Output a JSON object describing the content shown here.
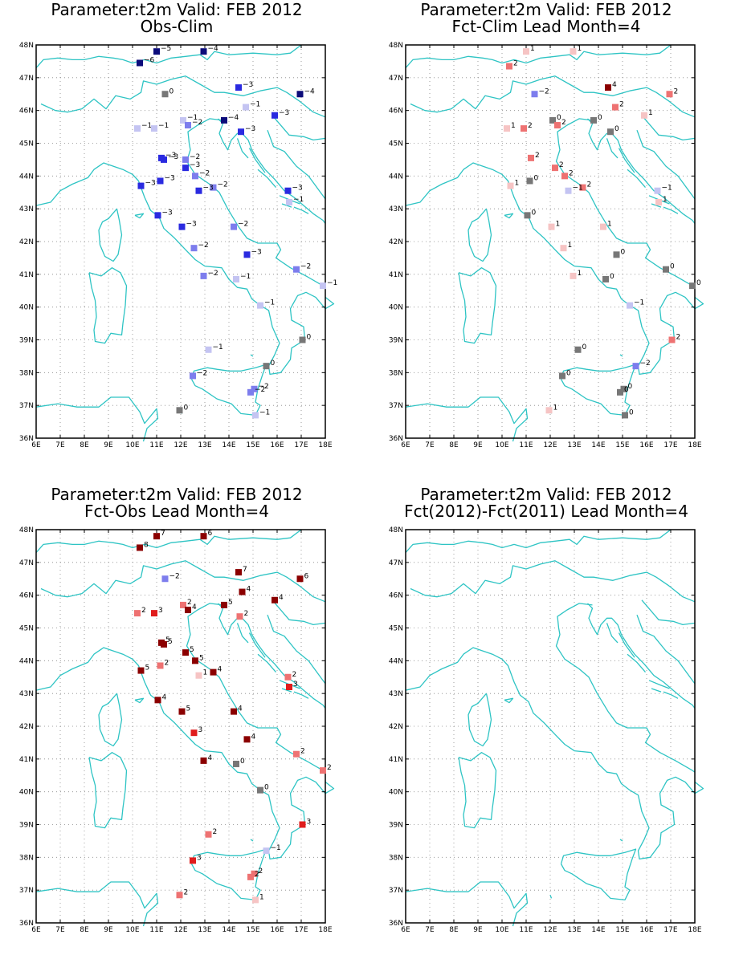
{
  "lon_ticks": [
    "6E",
    "7E",
    "8E",
    "9E",
    "10E",
    "11E",
    "12E",
    "13E",
    "14E",
    "15E",
    "16E",
    "17E",
    "18E"
  ],
  "lat_ticks": [
    "36N",
    "37N",
    "38N",
    "39N",
    "40N",
    "41N",
    "42N",
    "43N",
    "44N",
    "45N",
    "46N",
    "47N",
    "48N"
  ],
  "extent": {
    "lon": [
      6,
      18
    ],
    "lat": [
      36,
      48
    ]
  },
  "colors": {
    "coast": "#2ec4c4",
    "grid": "#888888",
    "neg_strong": "#0b0b7a",
    "neutral": "#777777",
    "pos_strong": "#8b0000"
  },
  "panels": [
    {
      "title": "Parameter:t2m Valid: FEB 2012",
      "subtitle": "Obs-Clim",
      "stations": [
        {
          "lon": 11.0,
          "lat": 47.8,
          "v": -5
        },
        {
          "lon": 12.95,
          "lat": 47.8,
          "v": -4
        },
        {
          "lon": 10.3,
          "lat": 47.45,
          "v": -6
        },
        {
          "lon": 11.35,
          "lat": 46.5,
          "v": 0
        },
        {
          "lon": 14.4,
          "lat": 46.7,
          "v": -3
        },
        {
          "lon": 16.95,
          "lat": 46.5,
          "v": -4
        },
        {
          "lon": 14.7,
          "lat": 46.1,
          "v": -1
        },
        {
          "lon": 13.8,
          "lat": 45.7,
          "v": -4
        },
        {
          "lon": 15.9,
          "lat": 45.85,
          "v": -3
        },
        {
          "lon": 12.1,
          "lat": 45.7,
          "v": -1
        },
        {
          "lon": 12.3,
          "lat": 45.55,
          "v": -2
        },
        {
          "lon": 14.5,
          "lat": 45.35,
          "v": -3
        },
        {
          "lon": 10.2,
          "lat": 45.45,
          "v": -1
        },
        {
          "lon": 10.9,
          "lat": 45.45,
          "v": -1
        },
        {
          "lon": 11.2,
          "lat": 44.55,
          "v": -3
        },
        {
          "lon": 11.3,
          "lat": 44.5,
          "v": -3
        },
        {
          "lon": 12.2,
          "lat": 44.5,
          "v": -2
        },
        {
          "lon": 12.2,
          "lat": 44.25,
          "v": -3
        },
        {
          "lon": 12.6,
          "lat": 44.0,
          "v": -2
        },
        {
          "lon": 13.35,
          "lat": 43.65,
          "v": -2
        },
        {
          "lon": 12.75,
          "lat": 43.55,
          "v": -3
        },
        {
          "lon": 10.35,
          "lat": 43.7,
          "v": -3
        },
        {
          "lon": 11.15,
          "lat": 43.85,
          "v": -3
        },
        {
          "lon": 16.45,
          "lat": 43.55,
          "v": -3
        },
        {
          "lon": 16.5,
          "lat": 43.2,
          "v": -1
        },
        {
          "lon": 11.05,
          "lat": 42.8,
          "v": -3
        },
        {
          "lon": 12.05,
          "lat": 42.45,
          "v": -3
        },
        {
          "lon": 14.2,
          "lat": 42.45,
          "v": -2
        },
        {
          "lon": 12.55,
          "lat": 41.8,
          "v": -2
        },
        {
          "lon": 14.75,
          "lat": 41.6,
          "v": -3
        },
        {
          "lon": 16.8,
          "lat": 41.15,
          "v": -2
        },
        {
          "lon": 12.95,
          "lat": 40.95,
          "v": -2
        },
        {
          "lon": 14.3,
          "lat": 40.85,
          "v": -1
        },
        {
          "lon": 17.9,
          "lat": 40.65,
          "v": -1
        },
        {
          "lon": 15.3,
          "lat": 40.05,
          "v": -1
        },
        {
          "lon": 17.05,
          "lat": 39.0,
          "v": 0
        },
        {
          "lon": 13.15,
          "lat": 38.7,
          "v": -1
        },
        {
          "lon": 15.55,
          "lat": 38.2,
          "v": 0
        },
        {
          "lon": 12.5,
          "lat": 37.9,
          "v": -2
        },
        {
          "lon": 15.05,
          "lat": 37.5,
          "v": -2
        },
        {
          "lon": 14.9,
          "lat": 37.4,
          "v": -2
        },
        {
          "lon": 11.95,
          "lat": 36.85,
          "v": 0
        },
        {
          "lon": 15.1,
          "lat": 36.7,
          "v": -1
        }
      ]
    },
    {
      "title": "Parameter:t2m Valid: FEB 2012",
      "subtitle": "Fct-Clim Lead Month=4",
      "stations": [
        {
          "lon": 11.0,
          "lat": 47.8,
          "v": 1
        },
        {
          "lon": 12.95,
          "lat": 47.8,
          "v": 1
        },
        {
          "lon": 10.3,
          "lat": 47.35,
          "v": 2
        },
        {
          "lon": 11.35,
          "lat": 46.5,
          "v": -2
        },
        {
          "lon": 14.4,
          "lat": 46.7,
          "v": 4
        },
        {
          "lon": 16.95,
          "lat": 46.5,
          "v": 2
        },
        {
          "lon": 14.7,
          "lat": 46.1,
          "v": 2
        },
        {
          "lon": 13.8,
          "lat": 45.7,
          "v": 0
        },
        {
          "lon": 15.9,
          "lat": 45.85,
          "v": 1
        },
        {
          "lon": 12.1,
          "lat": 45.7,
          "v": 0
        },
        {
          "lon": 12.3,
          "lat": 45.55,
          "v": 2
        },
        {
          "lon": 14.5,
          "lat": 45.35,
          "v": 0
        },
        {
          "lon": 10.2,
          "lat": 45.45,
          "v": 1
        },
        {
          "lon": 10.9,
          "lat": 45.45,
          "v": 2
        },
        {
          "lon": 11.2,
          "lat": 44.55,
          "v": 2
        },
        {
          "lon": 12.2,
          "lat": 44.25,
          "v": 2
        },
        {
          "lon": 12.6,
          "lat": 44.0,
          "v": 2
        },
        {
          "lon": 13.35,
          "lat": 43.65,
          "v": 2
        },
        {
          "lon": 12.75,
          "lat": 43.55,
          "v": -1
        },
        {
          "lon": 10.35,
          "lat": 43.7,
          "v": 1
        },
        {
          "lon": 11.15,
          "lat": 43.85,
          "v": 0
        },
        {
          "lon": 16.45,
          "lat": 43.55,
          "v": -1
        },
        {
          "lon": 16.5,
          "lat": 43.2,
          "v": 1
        },
        {
          "lon": 11.05,
          "lat": 42.8,
          "v": 0
        },
        {
          "lon": 12.05,
          "lat": 42.45,
          "v": 1
        },
        {
          "lon": 14.2,
          "lat": 42.45,
          "v": 1
        },
        {
          "lon": 12.55,
          "lat": 41.8,
          "v": 1
        },
        {
          "lon": 14.75,
          "lat": 41.6,
          "v": 0
        },
        {
          "lon": 16.8,
          "lat": 41.15,
          "v": 0
        },
        {
          "lon": 12.95,
          "lat": 40.95,
          "v": 1
        },
        {
          "lon": 14.3,
          "lat": 40.85,
          "v": 0
        },
        {
          "lon": 17.9,
          "lat": 40.65,
          "v": 0
        },
        {
          "lon": 15.3,
          "lat": 40.05,
          "v": -1
        },
        {
          "lon": 17.05,
          "lat": 39.0,
          "v": 2
        },
        {
          "lon": 13.15,
          "lat": 38.7,
          "v": 0
        },
        {
          "lon": 15.55,
          "lat": 38.2,
          "v": -2
        },
        {
          "lon": 12.5,
          "lat": 37.9,
          "v": 0
        },
        {
          "lon": 15.05,
          "lat": 37.5,
          "v": 0
        },
        {
          "lon": 14.9,
          "lat": 37.4,
          "v": 0
        },
        {
          "lon": 11.95,
          "lat": 36.85,
          "v": 1
        },
        {
          "lon": 15.1,
          "lat": 36.7,
          "v": 0
        }
      ]
    },
    {
      "title": "Parameter:t2m Valid: FEB 2012",
      "subtitle": "Fct-Obs Lead Month=4",
      "stations": [
        {
          "lon": 11.0,
          "lat": 47.8,
          "v": 7
        },
        {
          "lon": 12.95,
          "lat": 47.8,
          "v": 6
        },
        {
          "lon": 10.3,
          "lat": 47.45,
          "v": 8
        },
        {
          "lon": 11.35,
          "lat": 46.5,
          "v": -2
        },
        {
          "lon": 14.4,
          "lat": 46.7,
          "v": 7
        },
        {
          "lon": 16.95,
          "lat": 46.5,
          "v": 6
        },
        {
          "lon": 14.55,
          "lat": 46.1,
          "v": 4
        },
        {
          "lon": 13.8,
          "lat": 45.7,
          "v": 5
        },
        {
          "lon": 15.9,
          "lat": 45.85,
          "v": 4
        },
        {
          "lon": 12.1,
          "lat": 45.7,
          "v": 2
        },
        {
          "lon": 12.3,
          "lat": 45.55,
          "v": 4
        },
        {
          "lon": 14.45,
          "lat": 45.35,
          "v": 2
        },
        {
          "lon": 10.2,
          "lat": 45.45,
          "v": 2
        },
        {
          "lon": 10.9,
          "lat": 45.45,
          "v": 3
        },
        {
          "lon": 11.2,
          "lat": 44.55,
          "v": 5
        },
        {
          "lon": 11.3,
          "lat": 44.5,
          "v": 5
        },
        {
          "lon": 12.2,
          "lat": 44.25,
          "v": 5
        },
        {
          "lon": 12.6,
          "lat": 44.0,
          "v": 5
        },
        {
          "lon": 13.35,
          "lat": 43.65,
          "v": 4
        },
        {
          "lon": 12.75,
          "lat": 43.55,
          "v": 1
        },
        {
          "lon": 10.35,
          "lat": 43.7,
          "v": 5
        },
        {
          "lon": 11.15,
          "lat": 43.85,
          "v": 2
        },
        {
          "lon": 16.45,
          "lat": 43.5,
          "v": 2
        },
        {
          "lon": 16.5,
          "lat": 43.2,
          "v": 3
        },
        {
          "lon": 11.05,
          "lat": 42.8,
          "v": 4
        },
        {
          "lon": 12.05,
          "lat": 42.45,
          "v": 5
        },
        {
          "lon": 14.2,
          "lat": 42.45,
          "v": 4
        },
        {
          "lon": 12.55,
          "lat": 41.8,
          "v": 3
        },
        {
          "lon": 14.75,
          "lat": 41.6,
          "v": 4
        },
        {
          "lon": 16.8,
          "lat": 41.15,
          "v": 2
        },
        {
          "lon": 12.95,
          "lat": 40.95,
          "v": 4
        },
        {
          "lon": 14.3,
          "lat": 40.85,
          "v": 0
        },
        {
          "lon": 17.9,
          "lat": 40.65,
          "v": 2
        },
        {
          "lon": 15.3,
          "lat": 40.05,
          "v": 0
        },
        {
          "lon": 17.05,
          "lat": 39.0,
          "v": 3
        },
        {
          "lon": 13.15,
          "lat": 38.7,
          "v": 2
        },
        {
          "lon": 15.55,
          "lat": 38.2,
          "v": -1
        },
        {
          "lon": 12.5,
          "lat": 37.9,
          "v": 3
        },
        {
          "lon": 15.05,
          "lat": 37.5,
          "v": 2
        },
        {
          "lon": 14.9,
          "lat": 37.4,
          "v": 2
        },
        {
          "lon": 11.95,
          "lat": 36.85,
          "v": 2
        },
        {
          "lon": 15.1,
          "lat": 36.7,
          "v": 1
        }
      ]
    },
    {
      "title": "Parameter:t2m Valid: FEB 2012",
      "subtitle": "Fct(2012)-Fct(2011) Lead Month=4",
      "stations": []
    }
  ]
}
